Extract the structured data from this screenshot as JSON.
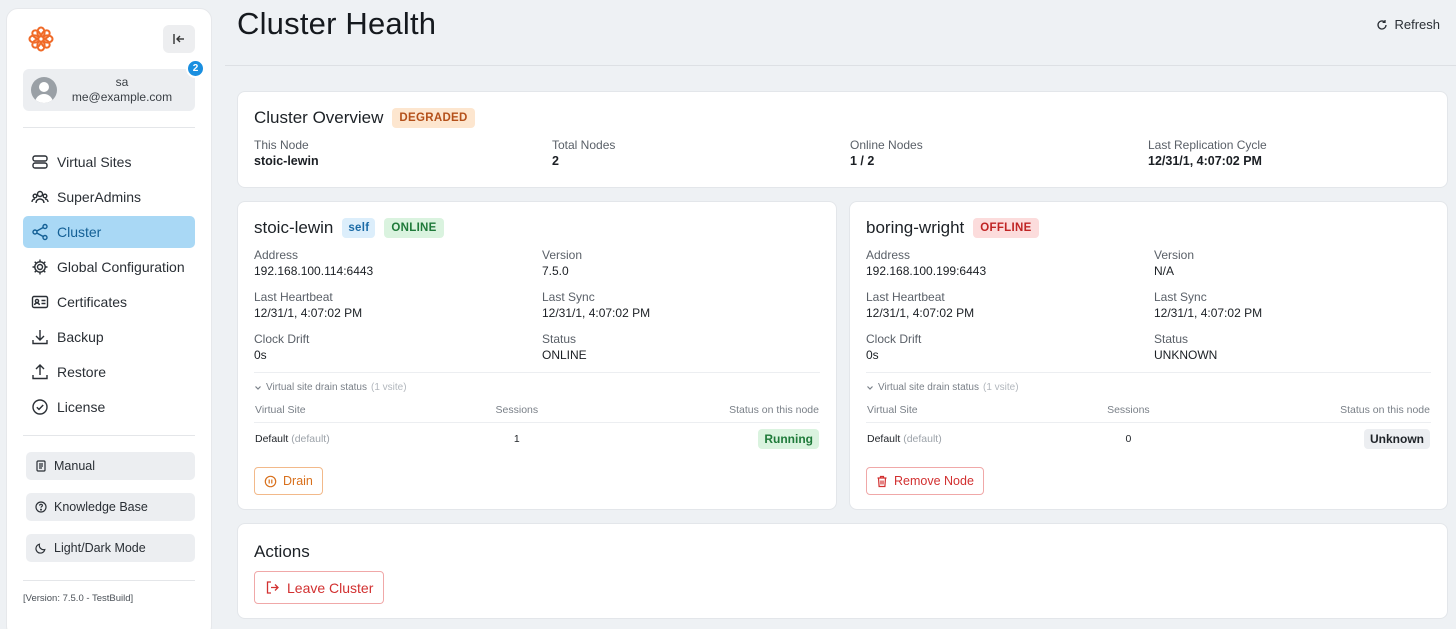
{
  "sidebar": {
    "user": {
      "name": "sa",
      "email": "me@example.com",
      "notification_count": "2"
    },
    "nav": [
      {
        "label": "Virtual Sites",
        "icon": "server-icon"
      },
      {
        "label": "SuperAdmins",
        "icon": "users-icon"
      },
      {
        "label": "Cluster",
        "icon": "share-nodes-icon",
        "active": true
      },
      {
        "label": "Global Configuration",
        "icon": "gear-icon"
      },
      {
        "label": "Certificates",
        "icon": "id-card-icon"
      },
      {
        "label": "Backup",
        "icon": "download-icon"
      },
      {
        "label": "Restore",
        "icon": "upload-icon"
      },
      {
        "label": "License",
        "icon": "check-circle-icon"
      }
    ],
    "buttons": {
      "manual": "Manual",
      "knowledge_base": "Knowledge Base",
      "theme": "Light/Dark Mode"
    },
    "version": "[Version: 7.5.0 - TestBuild]"
  },
  "header": {
    "title": "Cluster Health",
    "refresh_label": "Refresh"
  },
  "overview": {
    "title": "Cluster Overview",
    "status": "DEGRADED",
    "fields": [
      {
        "label": "This Node",
        "value": "stoic-lewin"
      },
      {
        "label": "Total Nodes",
        "value": "2"
      },
      {
        "label": "Online Nodes",
        "value": "1 / 2"
      },
      {
        "label": "Last Replication Cycle",
        "value": "12/31/1, 4:07:02 PM"
      }
    ]
  },
  "nodes": [
    {
      "name": "stoic-lewin",
      "self_tag": "self",
      "status": "ONLINE",
      "address_label": "Address",
      "address": "192.168.100.114:6443",
      "version_label": "Version",
      "version": "7.5.0",
      "heartbeat_label": "Last Heartbeat",
      "heartbeat": "12/31/1, 4:07:02 PM",
      "sync_label": "Last Sync",
      "sync": "12/31/1, 4:07:02 PM",
      "drift_label": "Clock Drift",
      "drift": "0s",
      "status_label": "Status",
      "status_value": "ONLINE",
      "drain_title": "Virtual site drain status",
      "drain_count": "(1 vsite)",
      "col_site": "Virtual Site",
      "col_sessions": "Sessions",
      "col_status": "Status on this node",
      "row_site": "Default",
      "row_tag": "(default)",
      "row_sessions": "1",
      "row_status": "Running",
      "action": "Drain"
    },
    {
      "name": "boring-wright",
      "status": "OFFLINE",
      "address_label": "Address",
      "address": "192.168.100.199:6443",
      "version_label": "Version",
      "version": "N/A",
      "heartbeat_label": "Last Heartbeat",
      "heartbeat": "12/31/1, 4:07:02 PM",
      "sync_label": "Last Sync",
      "sync": "12/31/1, 4:07:02 PM",
      "drift_label": "Clock Drift",
      "drift": "0s",
      "status_label": "Status",
      "status_value": "UNKNOWN",
      "drain_title": "Virtual site drain status",
      "drain_count": "(1 vsite)",
      "col_site": "Virtual Site",
      "col_sessions": "Sessions",
      "col_status": "Status on this node",
      "row_site": "Default",
      "row_tag": "(default)",
      "row_sessions": "0",
      "row_status": "Unknown",
      "action": "Remove Node"
    }
  ],
  "actions": {
    "title": "Actions",
    "leave_label": "Leave Cluster"
  },
  "colors": {
    "accent": "#1a8fe0",
    "active_nav_bg": "#a9d8f5",
    "logo": "#f06a28",
    "danger": "#d23030",
    "warning": "#d8701c",
    "success": "#1f7a3a"
  }
}
